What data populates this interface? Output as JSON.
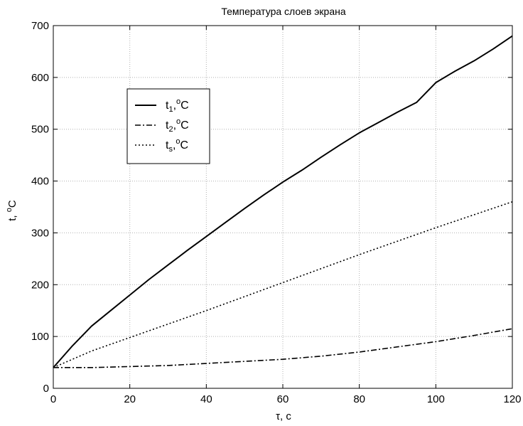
{
  "chart_data": {
    "type": "line",
    "title": "Температура слоев экрана",
    "xlabel": {
      "main": "τ",
      "rest": ", c"
    },
    "ylabel": {
      "main": "t, ",
      "sup": "o",
      "rest": "C"
    },
    "xlim": [
      0,
      120
    ],
    "ylim": [
      0,
      700
    ],
    "xticks": [
      0,
      20,
      40,
      60,
      80,
      100,
      120
    ],
    "yticks": [
      0,
      100,
      200,
      300,
      400,
      500,
      600,
      700
    ],
    "grid": true,
    "legend_position": "upper-left",
    "series": [
      {
        "name": {
          "base": "t",
          "sub": "1",
          "sup": "o",
          "rest": "C",
          "sep": ","
        },
        "style": "solid",
        "x": [
          0,
          5,
          10,
          15,
          20,
          25,
          30,
          35,
          40,
          45,
          50,
          55,
          60,
          65,
          70,
          75,
          80,
          85,
          90,
          95,
          100,
          105,
          110,
          115,
          120
        ],
        "y": [
          40,
          82,
          120,
          150,
          180,
          210,
          238,
          266,
          293,
          320,
          347,
          373,
          398,
          421,
          446,
          470,
          493,
          513,
          533,
          552,
          590,
          612,
          632,
          655,
          680
        ]
      },
      {
        "name": {
          "base": "t",
          "sub": "2",
          "sup": "o",
          "rest": "C",
          "sep": ","
        },
        "style": "dashdot",
        "x": [
          0,
          10,
          20,
          30,
          40,
          50,
          60,
          70,
          80,
          90,
          100,
          110,
          120
        ],
        "y": [
          40,
          40,
          42,
          44,
          48,
          52,
          56,
          62,
          70,
          80,
          90,
          102,
          115
        ]
      },
      {
        "name": {
          "base": "t",
          "sub": "s",
          "sup": "o",
          "rest": "C",
          "sep": ","
        },
        "style": "dotted",
        "x": [
          0,
          10,
          20,
          30,
          40,
          50,
          60,
          70,
          80,
          90,
          100,
          110,
          120
        ],
        "y": [
          40,
          72,
          98,
          124,
          150,
          177,
          204,
          231,
          258,
          284,
          310,
          335,
          360
        ]
      }
    ]
  }
}
